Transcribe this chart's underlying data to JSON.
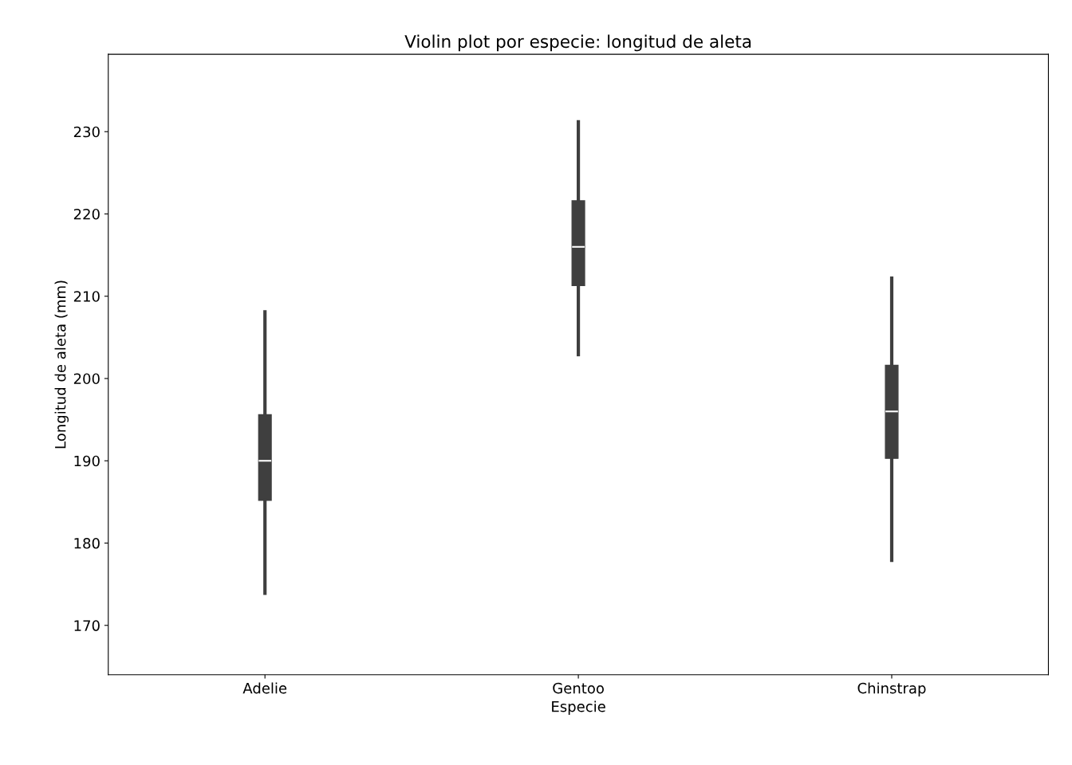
{
  "chart_data": {
    "type": "box",
    "title": "Violin plot por especie: longitud de aleta",
    "xlabel": "Especie",
    "ylabel": "Longitud de aleta (mm)",
    "categories": [
      "Adelie",
      "Gentoo",
      "Chinstrap"
    ],
    "boxes": [
      {
        "low": 173.9,
        "q1": 185.2,
        "median": 190,
        "q3": 195.6,
        "high": 208.1
      },
      {
        "low": 202.9,
        "q1": 211.3,
        "median": 216,
        "q3": 221.6,
        "high": 231.2
      },
      {
        "low": 177.9,
        "q1": 190.3,
        "median": 196,
        "q3": 201.6,
        "high": 212.2
      }
    ],
    "color": "#3f3f3f",
    "ylim": [
      164,
      239.4
    ],
    "yticks": [
      170,
      180,
      190,
      200,
      210,
      220,
      230
    ],
    "grid": false
  }
}
